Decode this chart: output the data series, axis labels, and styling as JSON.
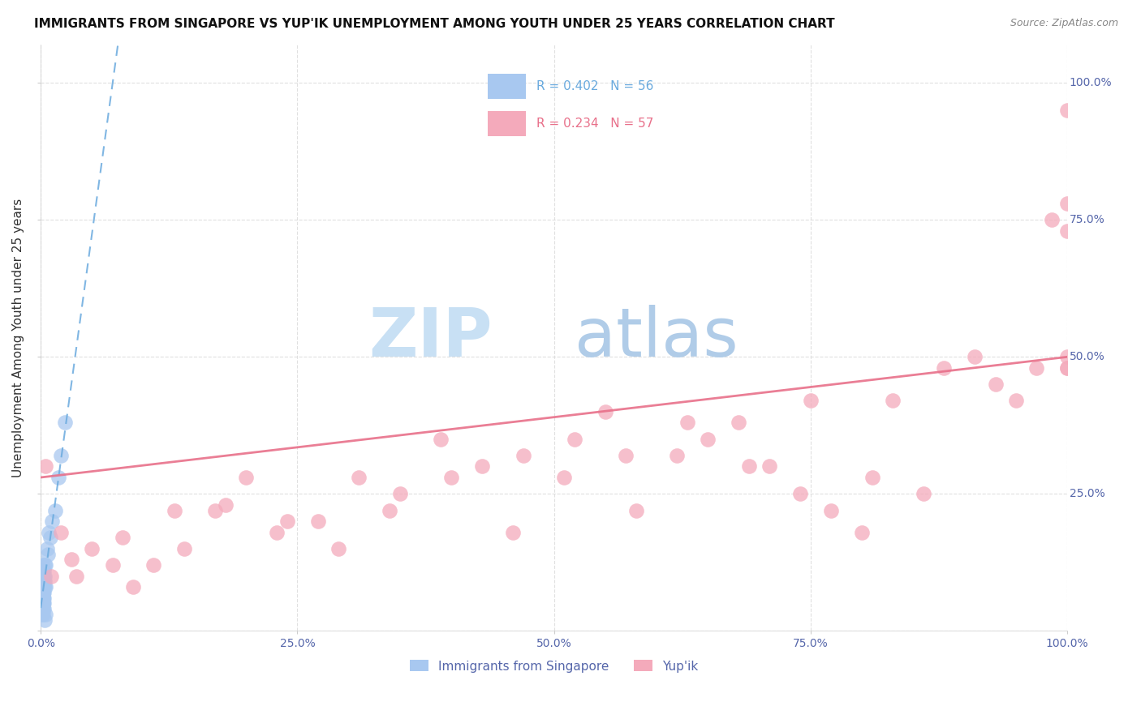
{
  "title": "IMMIGRANTS FROM SINGAPORE VS YUP'IK UNEMPLOYMENT AMONG YOUTH UNDER 25 YEARS CORRELATION CHART",
  "source": "Source: ZipAtlas.com",
  "ylabel": "Unemployment Among Youth under 25 years",
  "legend_label1": "Immigrants from Singapore",
  "legend_label2": "Yup'ik",
  "R1": 0.402,
  "N1": 56,
  "R2": 0.234,
  "N2": 57,
  "color_blue": "#A8C8F0",
  "color_pink": "#F4AABB",
  "color_blue_dark": "#6AAADE",
  "color_pink_dark": "#E8708A",
  "background_color": "#FFFFFF",
  "grid_color": "#DDDDDD",
  "blue_points_x": [
    0.05,
    0.08,
    0.08,
    0.1,
    0.1,
    0.12,
    0.12,
    0.13,
    0.15,
    0.15,
    0.15,
    0.18,
    0.18,
    0.18,
    0.2,
    0.2,
    0.2,
    0.22,
    0.22,
    0.25,
    0.25,
    0.28,
    0.28,
    0.3,
    0.3,
    0.32,
    0.32,
    0.35,
    0.38,
    0.38,
    0.4,
    0.45,
    0.5,
    0.6,
    0.7,
    0.8,
    0.9,
    1.1,
    1.4,
    1.7,
    2.0,
    2.4,
    0.05,
    0.07,
    0.09,
    0.11,
    0.13,
    0.16,
    0.19,
    0.21,
    0.24,
    0.26,
    0.29,
    0.31,
    0.37,
    0.48
  ],
  "blue_points_y": [
    5,
    8,
    10,
    7,
    9,
    6,
    8,
    12,
    7,
    9,
    11,
    6,
    8,
    10,
    5,
    7,
    9,
    6,
    8,
    5,
    7,
    6,
    9,
    7,
    10,
    8,
    11,
    9,
    8,
    12,
    10,
    8,
    12,
    15,
    14,
    18,
    17,
    20,
    22,
    28,
    32,
    38,
    3,
    4,
    5,
    6,
    4,
    5,
    6,
    4,
    5,
    3,
    4,
    5,
    2,
    3
  ],
  "pink_points_x": [
    0.5,
    1.0,
    2.0,
    3.5,
    5.0,
    7.0,
    9.0,
    11.0,
    14.0,
    17.0,
    20.0,
    23.0,
    27.0,
    31.0,
    35.0,
    39.0,
    43.0,
    47.0,
    51.0,
    55.0,
    58.0,
    62.0,
    65.0,
    68.0,
    71.0,
    74.0,
    77.0,
    80.0,
    83.0,
    86.0,
    88.0,
    91.0,
    93.0,
    95.0,
    97.0,
    98.5,
    100.0,
    100.0,
    100.0,
    100.0,
    100.0,
    100.0,
    3.0,
    8.0,
    13.0,
    18.0,
    24.0,
    29.0,
    34.0,
    40.0,
    46.0,
    52.0,
    57.0,
    63.0,
    69.0,
    75.0,
    81.0
  ],
  "pink_points_y": [
    30,
    10,
    18,
    10,
    15,
    12,
    8,
    12,
    15,
    22,
    28,
    18,
    20,
    28,
    25,
    35,
    30,
    32,
    28,
    40,
    22,
    32,
    35,
    38,
    30,
    25,
    22,
    18,
    42,
    25,
    48,
    50,
    45,
    42,
    48,
    75,
    95,
    73,
    48,
    78,
    50,
    48,
    13,
    17,
    22,
    23,
    20,
    15,
    22,
    28,
    18,
    35,
    32,
    38,
    30,
    42,
    28
  ],
  "watermark_zip_color": "#C8E0F4",
  "watermark_atlas_color": "#B0CCE8",
  "watermark_fontsize": 60,
  "title_fontsize": 11,
  "axis_label_fontsize": 11,
  "tick_fontsize": 10,
  "tick_color": "#5566AA",
  "ylabel_color": "#333333",
  "title_color": "#111111",
  "source_color": "#888888",
  "blue_line_intercept": 5.0,
  "blue_line_slope": 14.0,
  "pink_line_intercept": 28.0,
  "pink_line_slope": 0.22
}
